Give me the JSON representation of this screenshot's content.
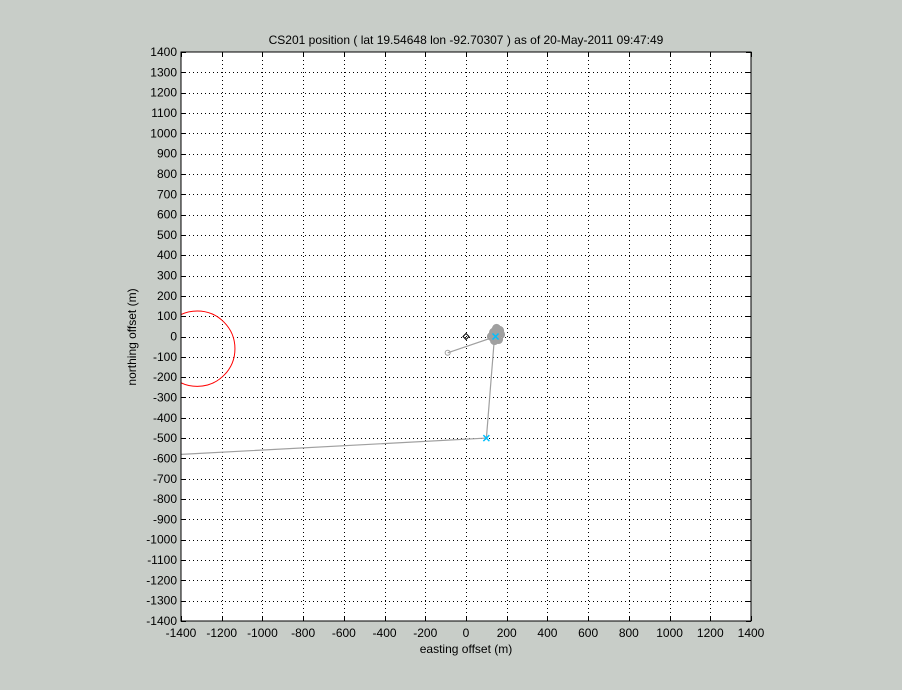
{
  "chart_data": {
    "type": "scatter",
    "title": "CS201 position ( lat  19.54648 lon -92.70307 ) as of 20-May-2011 09:47:49",
    "xlabel": "easting offset (m)",
    "ylabel": "northing offset (m)",
    "xlim": [
      -1400,
      1400
    ],
    "ylim": [
      -1400,
      1400
    ],
    "xticks": [
      -1400,
      -1200,
      -1000,
      -800,
      -600,
      -400,
      -200,
      0,
      200,
      400,
      600,
      800,
      1000,
      1200,
      1400
    ],
    "yticks": [
      1400,
      1300,
      1200,
      1100,
      1000,
      900,
      800,
      700,
      600,
      500,
      400,
      300,
      200,
      100,
      0,
      -100,
      -200,
      -300,
      -400,
      -500,
      -600,
      -700,
      -800,
      -900,
      -1000,
      -1100,
      -1200,
      -1300,
      -1400
    ],
    "grid": true,
    "grid_style": "dotted",
    "series": [
      {
        "kind": "track",
        "color": "#a0a0a0",
        "points": [
          [
            -1400,
            -580
          ],
          [
            100,
            -500
          ],
          [
            140,
            -2
          ],
          [
            -90,
            -80
          ]
        ]
      },
      {
        "kind": "cluster",
        "color": "#a0a0a0",
        "points": [
          [
            135,
            20
          ],
          [
            150,
            40
          ],
          [
            165,
            30
          ],
          [
            170,
            10
          ],
          [
            160,
            -15
          ],
          [
            140,
            -20
          ],
          [
            125,
            0
          ],
          [
            150,
            5
          ],
          [
            160,
            20
          ],
          [
            145,
            30
          ]
        ]
      },
      {
        "kind": "origin-marker",
        "marker": "diamond",
        "color": "#000000",
        "points": [
          [
            0,
            0
          ]
        ]
      },
      {
        "kind": "current-position",
        "marker": "x",
        "color": "#00bfff",
        "points": [
          [
            145,
            0
          ]
        ]
      },
      {
        "kind": "waypoint",
        "marker": "x",
        "color": "#00bfff",
        "points": [
          [
            100,
            -500
          ]
        ]
      },
      {
        "kind": "range-circle",
        "color": "#ff0000",
        "center": [
          -1320,
          -60
        ],
        "radius": 185
      }
    ]
  }
}
